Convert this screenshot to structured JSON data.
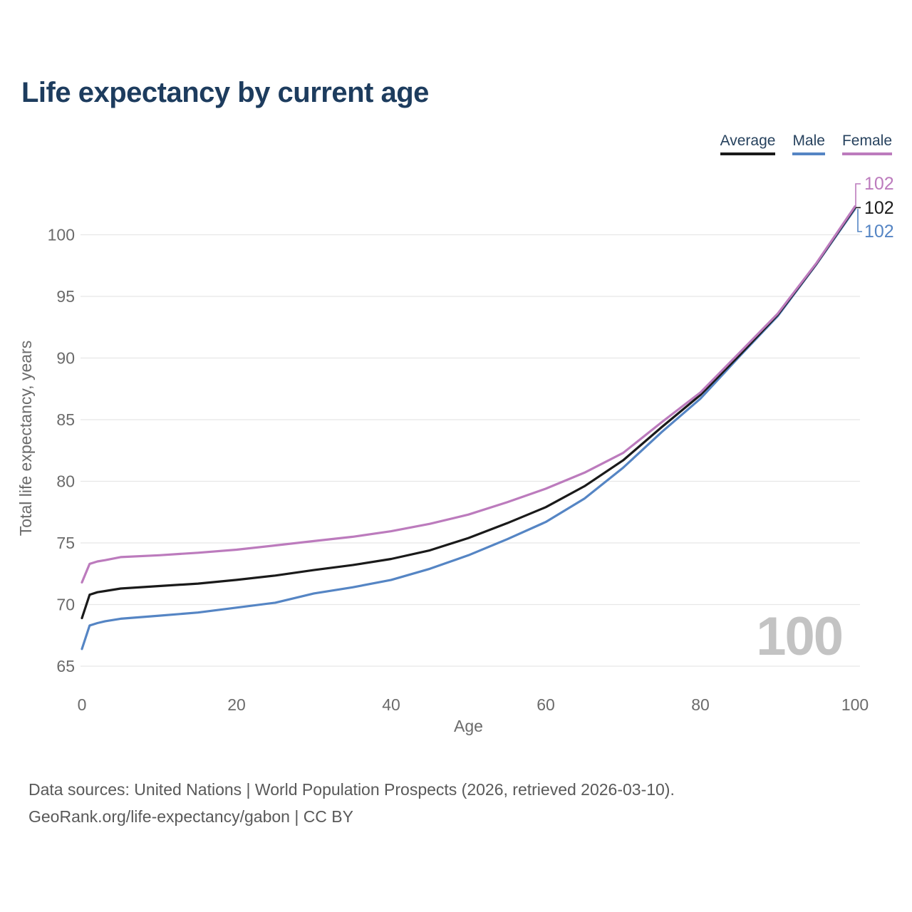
{
  "title": "Life expectancy by current age",
  "legend": [
    {
      "label": "Average",
      "color": "#1a1a1a"
    },
    {
      "label": "Male",
      "color": "#5585c4"
    },
    {
      "label": "Female",
      "color": "#bc7bbd"
    }
  ],
  "watermark": "100",
  "footer": {
    "line1": "Data sources: United Nations | World Population Prospects (2026, retrieved 2026-03-10).",
    "line2": "GeoRank.org/life-expectancy/gabon | CC BY"
  },
  "colors": {
    "grid": "#e7e7e7",
    "tick_text": "#6b6b6b",
    "axis_label_text": "#6b6b6b",
    "watermark": "#c3c3c3"
  },
  "chart_data": {
    "type": "line",
    "title": "Life expectancy by current age",
    "xlabel": "Age",
    "ylabel": "Total life expectancy, years",
    "xlim": [
      0,
      100
    ],
    "ylim": [
      65,
      103
    ],
    "xticks": [
      0,
      20,
      40,
      60,
      80,
      100
    ],
    "yticks": [
      65,
      70,
      75,
      80,
      85,
      90,
      95,
      100
    ],
    "grid": "horizontal-only",
    "legend_position": "top-right",
    "x": [
      0,
      1,
      2,
      3,
      5,
      10,
      15,
      20,
      25,
      30,
      35,
      40,
      45,
      50,
      55,
      60,
      65,
      70,
      75,
      80,
      85,
      90,
      95,
      100
    ],
    "series": [
      {
        "name": "Male",
        "color": "#5585c4",
        "end_label": "102",
        "values": [
          66.4,
          68.3,
          68.5,
          68.65,
          68.85,
          69.1,
          69.35,
          69.75,
          70.15,
          70.9,
          71.4,
          72.0,
          72.9,
          74.0,
          75.3,
          76.7,
          78.6,
          81.1,
          84.0,
          86.7,
          90.1,
          93.4,
          97.6,
          102.1
        ]
      },
      {
        "name": "Average",
        "color": "#1a1a1a",
        "end_label": "102",
        "values": [
          68.9,
          70.8,
          71.0,
          71.1,
          71.3,
          71.5,
          71.7,
          72.0,
          72.35,
          72.8,
          73.2,
          73.7,
          74.4,
          75.4,
          76.6,
          77.9,
          79.6,
          81.7,
          84.4,
          87.0,
          90.2,
          93.5,
          97.65,
          102.2
        ]
      },
      {
        "name": "Female",
        "color": "#bc7bbd",
        "end_label": "102",
        "values": [
          71.8,
          73.3,
          73.5,
          73.6,
          73.85,
          74.0,
          74.2,
          74.45,
          74.8,
          75.15,
          75.5,
          75.95,
          76.55,
          77.3,
          78.3,
          79.4,
          80.7,
          82.3,
          84.8,
          87.2,
          90.4,
          93.6,
          97.7,
          102.3
        ]
      }
    ]
  }
}
